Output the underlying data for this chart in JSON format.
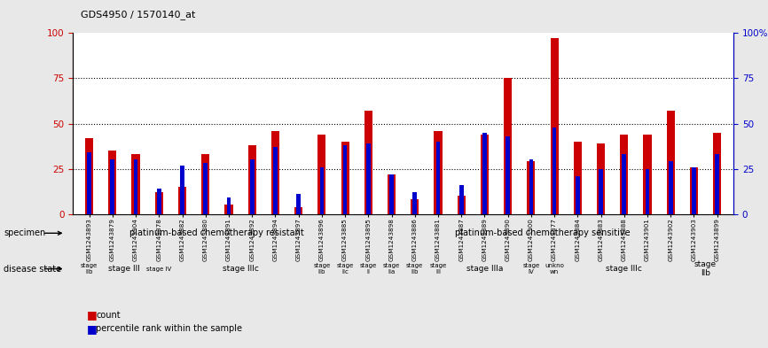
{
  "title": "GDS4950 / 1570140_at",
  "samples": [
    "GSM1243893",
    "GSM1243879",
    "GSM1243904",
    "GSM1243878",
    "GSM1243882",
    "GSM1243880",
    "GSM1243891",
    "GSM1243892",
    "GSM1243894",
    "GSM1243897",
    "GSM1243896",
    "GSM1243885",
    "GSM1243895",
    "GSM1243898",
    "GSM1243886",
    "GSM1243881",
    "GSM1243887",
    "GSM1243889",
    "GSM1243890",
    "GSM1243900",
    "GSM1243877",
    "GSM1243884",
    "GSM1243883",
    "GSM1243888",
    "GSM1243901",
    "GSM1243902",
    "GSM1243903",
    "GSM1243899"
  ],
  "red_values": [
    42,
    35,
    33,
    12,
    15,
    33,
    5,
    38,
    46,
    4,
    44,
    40,
    57,
    22,
    8,
    46,
    10,
    44,
    75,
    29,
    97,
    40,
    39,
    44,
    44,
    57,
    26,
    45
  ],
  "blue_values": [
    34,
    30,
    30,
    14,
    27,
    28,
    9,
    30,
    37,
    11,
    26,
    38,
    39,
    22,
    12,
    40,
    16,
    45,
    43,
    30,
    48,
    21,
    25,
    33,
    25,
    29,
    26,
    33
  ],
  "specimen_groups": [
    {
      "label": "platinum-based chemotherapy resistant",
      "start": 0,
      "end": 11,
      "color": "#90EE90"
    },
    {
      "label": "platinum-based chemotherapy sensitive",
      "start": 12,
      "end": 27,
      "color": "#44DD44"
    }
  ],
  "disease_groups": [
    {
      "label": "stage\nIIb",
      "start": 0,
      "end": 0,
      "color": "#EE82EE"
    },
    {
      "label": "stage III",
      "start": 1,
      "end": 2,
      "color": "#EE82EE"
    },
    {
      "label": "stage IV",
      "start": 3,
      "end": 3,
      "color": "#EE82EE"
    },
    {
      "label": "stage IIIc",
      "start": 4,
      "end": 9,
      "color": "#CC66CC"
    },
    {
      "label": "stage\nIIb",
      "start": 10,
      "end": 10,
      "color": "#EE82EE"
    },
    {
      "label": "stage\nIIc",
      "start": 11,
      "end": 11,
      "color": "#EE82EE"
    },
    {
      "label": "stage\nII",
      "start": 12,
      "end": 12,
      "color": "#EE82EE"
    },
    {
      "label": "stage\nIIa",
      "start": 13,
      "end": 13,
      "color": "#EE82EE"
    },
    {
      "label": "stage\nIIb",
      "start": 14,
      "end": 14,
      "color": "#EE82EE"
    },
    {
      "label": "stage\nIII",
      "start": 15,
      "end": 15,
      "color": "#EE82EE"
    },
    {
      "label": "stage IIIa",
      "start": 16,
      "end": 18,
      "color": "#CC66CC"
    },
    {
      "label": "stage\nIV",
      "start": 19,
      "end": 19,
      "color": "#EE82EE"
    },
    {
      "label": "unkno\nwn",
      "start": 20,
      "end": 20,
      "color": "#EE82EE"
    },
    {
      "label": "stage IIIc",
      "start": 21,
      "end": 25,
      "color": "#CC66CC"
    },
    {
      "label": "stage\nIIb",
      "start": 26,
      "end": 27,
      "color": "#EE82EE"
    }
  ],
  "bar_color_red": "#CC0000",
  "bar_color_blue": "#0000CC",
  "bar_width": 0.35,
  "blue_bar_width": 0.18,
  "ylim": [
    0,
    100
  ],
  "grid_values": [
    25,
    50,
    75
  ],
  "bg_color": "#E8E8E8",
  "chart_bg": "#FFFFFF",
  "left_label_color": "#CC0000",
  "right_label_color": "#0000CC",
  "yticks": [
    0,
    25,
    50,
    75,
    100
  ],
  "right_yticklabels": [
    "0",
    "25",
    "50",
    "75",
    "100%"
  ]
}
